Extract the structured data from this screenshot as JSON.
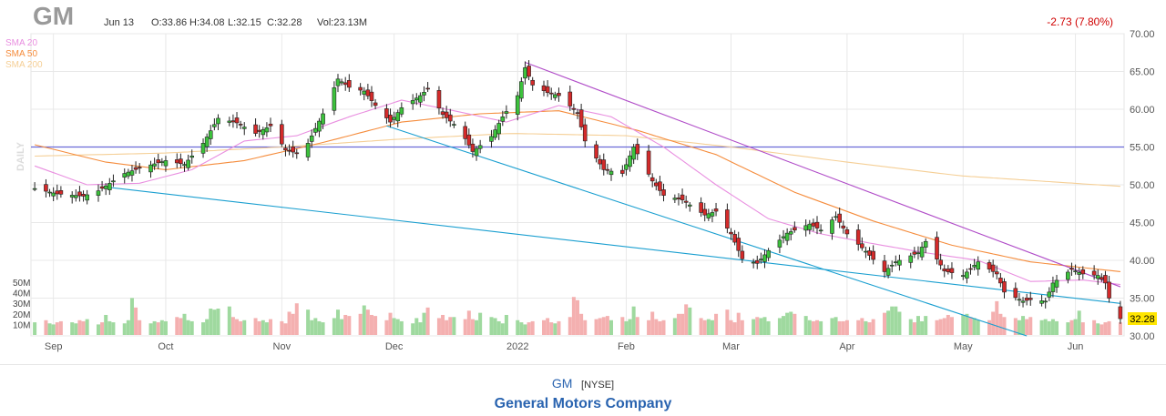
{
  "header": {
    "symbol": "GM",
    "date": "Jun 13",
    "open": "O:33.86",
    "high": "H:34.08",
    "low": "L:32.15",
    "close": "C:32.28",
    "volume": "Vol:23.13M",
    "change": "-2.73 (7.80%)",
    "interval": "DAILY"
  },
  "legend": [
    {
      "name": "SMA 20",
      "color": "#e98fe0"
    },
    {
      "name": "SMA 50",
      "color": "#f58c3c"
    },
    {
      "name": "SMA 200",
      "color": "#f5cf96"
    }
  ],
  "footer": {
    "symbol": "GM",
    "exchange": "[NYSE]",
    "company": "General Motors Company"
  },
  "colors": {
    "up": "#3cc23c",
    "down": "#d42a2a",
    "volume_up": "#9fd99f",
    "volume_down": "#f4b0b0",
    "trendline_upper": "#b04cc8",
    "trendline_lower": "#1a9fd0",
    "horizontal": "#6a6ad8",
    "last_price_bg": "#ffe600"
  },
  "chart_data": {
    "type": "candlestick",
    "y_ticks": [
      "30.00",
      "35.00",
      "40.00",
      "45.00",
      "50.00",
      "55.00",
      "60.00",
      "65.00",
      "70.00"
    ],
    "ylim": [
      30,
      70
    ],
    "volume_ticks": [
      "10M",
      "20M",
      "30M",
      "40M",
      "50M"
    ],
    "x_ticks": [
      "Sep",
      "Oct",
      "Nov",
      "Dec",
      "2022",
      "Feb",
      "Mar",
      "Apr",
      "May",
      "Jun"
    ],
    "last_price": "32.28",
    "horizontal_line": 55,
    "trendlines": [
      {
        "name": "upper",
        "from": [
          "2022-01-05",
          66.2
        ],
        "to": [
          "2022-06-13",
          36.5
        ]
      },
      {
        "name": "lower-1",
        "from": [
          "2021-09-15",
          49.7
        ],
        "to": [
          "2022-06-13",
          34.3
        ]
      },
      {
        "name": "lower-2",
        "from": [
          "2021-11-29",
          57.8
        ],
        "to": [
          "2022-05-19",
          30.0
        ]
      }
    ],
    "price_anchors": [
      [
        "2021-08-27",
        49.5
      ],
      [
        "2021-09-02",
        48.8
      ],
      [
        "2021-09-09",
        48.5
      ],
      [
        "2021-09-13",
        49.2
      ],
      [
        "2021-09-20",
        51.5
      ],
      [
        "2021-09-24",
        52.2
      ],
      [
        "2021-10-01",
        53.2
      ],
      [
        "2021-10-06",
        52.7
      ],
      [
        "2021-10-11",
        55.5
      ],
      [
        "2021-10-15",
        58.8
      ],
      [
        "2021-10-20",
        58.2
      ],
      [
        "2021-10-25",
        56.8
      ],
      [
        "2021-10-29",
        57.8
      ],
      [
        "2021-11-02",
        54.6
      ],
      [
        "2021-11-05",
        54.2
      ],
      [
        "2021-11-08",
        55.5
      ],
      [
        "2021-11-12",
        59.4
      ],
      [
        "2021-11-16",
        64.0
      ],
      [
        "2021-11-19",
        62.9
      ],
      [
        "2021-11-23",
        62.4
      ],
      [
        "2021-11-26",
        60.5
      ],
      [
        "2021-11-30",
        58.3
      ],
      [
        "2021-12-03",
        60.2
      ],
      [
        "2021-12-08",
        61.8
      ],
      [
        "2021-12-10",
        62.7
      ],
      [
        "2021-12-14",
        59.3
      ],
      [
        "2021-12-17",
        58.0
      ],
      [
        "2021-12-20",
        56.1
      ],
      [
        "2021-12-22",
        54.4
      ],
      [
        "2021-12-27",
        56.4
      ],
      [
        "2021-12-30",
        59.0
      ],
      [
        "2022-01-03",
        61.8
      ],
      [
        "2022-01-05",
        65.5
      ],
      [
        "2022-01-07",
        63.2
      ],
      [
        "2022-01-11",
        62.2
      ],
      [
        "2022-01-14",
        61.8
      ],
      [
        "2022-01-19",
        59.5
      ],
      [
        "2022-01-21",
        55.8
      ],
      [
        "2022-01-26",
        52.0
      ],
      [
        "2022-01-31",
        51.5
      ],
      [
        "2022-02-03",
        55.0
      ],
      [
        "2022-02-08",
        50.5
      ],
      [
        "2022-02-11",
        48.6
      ],
      [
        "2022-02-16",
        48.0
      ],
      [
        "2022-02-22",
        46.0
      ],
      [
        "2022-02-25",
        46.5
      ],
      [
        "2022-03-01",
        43.5
      ],
      [
        "2022-03-04",
        40.2
      ],
      [
        "2022-03-08",
        39.6
      ],
      [
        "2022-03-11",
        41.3
      ],
      [
        "2022-03-16",
        43.6
      ],
      [
        "2022-03-22",
        44.8
      ],
      [
        "2022-03-25",
        44.0
      ],
      [
        "2022-03-29",
        45.8
      ],
      [
        "2022-04-01",
        43.5
      ],
      [
        "2022-04-06",
        41.2
      ],
      [
        "2022-04-11",
        38.5
      ],
      [
        "2022-04-14",
        39.8
      ],
      [
        "2022-04-20",
        41.0
      ],
      [
        "2022-04-22",
        42.5
      ],
      [
        "2022-04-27",
        38.6
      ],
      [
        "2022-05-02",
        38.0
      ],
      [
        "2022-05-06",
        39.8
      ],
      [
        "2022-05-11",
        38.2
      ],
      [
        "2022-05-13",
        35.8
      ],
      [
        "2022-05-18",
        34.6
      ],
      [
        "2022-05-20",
        34.8
      ],
      [
        "2022-05-24",
        34.6
      ],
      [
        "2022-05-26",
        37.0
      ],
      [
        "2022-05-31",
        38.8
      ],
      [
        "2022-06-03",
        38.2
      ],
      [
        "2022-06-07",
        38.0
      ],
      [
        "2022-06-09",
        37.0
      ],
      [
        "2022-06-10",
        35.0
      ],
      [
        "2022-06-13",
        32.28
      ]
    ],
    "sma20_anchors": [
      [
        "2021-08-27",
        52.5
      ],
      [
        "2021-09-10",
        50.0
      ],
      [
        "2021-09-24",
        50.2
      ],
      [
        "2021-10-08",
        52.0
      ],
      [
        "2021-10-22",
        55.8
      ],
      [
        "2021-11-05",
        56.5
      ],
      [
        "2021-11-19",
        59.0
      ],
      [
        "2021-12-03",
        61.2
      ],
      [
        "2021-12-17",
        59.8
      ],
      [
        "2021-12-31",
        58.3
      ],
      [
        "2022-01-14",
        60.5
      ],
      [
        "2022-01-28",
        59.0
      ],
      [
        "2022-02-11",
        55.0
      ],
      [
        "2022-02-25",
        50.0
      ],
      [
        "2022-03-11",
        45.5
      ],
      [
        "2022-03-25",
        43.5
      ],
      [
        "2022-04-08",
        42.2
      ],
      [
        "2022-04-22",
        41.0
      ],
      [
        "2022-05-06",
        40.0
      ],
      [
        "2022-05-20",
        37.2
      ],
      [
        "2022-06-03",
        37.4
      ],
      [
        "2022-06-13",
        36.8
      ]
    ],
    "sma50_anchors": [
      [
        "2021-08-27",
        55.3
      ],
      [
        "2021-09-15",
        53.0
      ],
      [
        "2021-10-01",
        52.0
      ],
      [
        "2021-10-22",
        53.2
      ],
      [
        "2021-11-12",
        55.6
      ],
      [
        "2021-12-03",
        58.3
      ],
      [
        "2021-12-24",
        59.4
      ],
      [
        "2022-01-14",
        59.8
      ],
      [
        "2022-02-04",
        57.2
      ],
      [
        "2022-02-25",
        54.0
      ],
      [
        "2022-03-18",
        49.0
      ],
      [
        "2022-04-08",
        45.2
      ],
      [
        "2022-04-29",
        42.0
      ],
      [
        "2022-05-20",
        39.8
      ],
      [
        "2022-06-13",
        38.5
      ]
    ],
    "sma200_anchors": [
      [
        "2021-08-27",
        53.8
      ],
      [
        "2021-10-01",
        54.2
      ],
      [
        "2021-11-01",
        55.0
      ],
      [
        "2021-12-01",
        56.0
      ],
      [
        "2022-01-01",
        56.8
      ],
      [
        "2022-02-01",
        56.5
      ],
      [
        "2022-03-01",
        55.0
      ],
      [
        "2022-04-01",
        53.0
      ],
      [
        "2022-05-01",
        51.2
      ],
      [
        "2022-06-13",
        49.8
      ]
    ],
    "volume_millions": [
      12,
      14,
      11,
      10,
      12,
      13,
      12,
      11,
      14,
      13,
      15,
      10,
      12,
      19,
      13,
      12,
      11,
      14,
      35,
      26,
      14,
      11,
      13,
      12,
      14,
      13,
      17,
      16,
      20,
      14,
      13,
      12,
      15,
      25,
      24,
      25,
      27,
      17,
      15,
      13,
      14,
      16,
      13,
      14,
      12,
      15,
      13,
      11,
      22,
      20,
      30,
      24,
      14,
      16,
      13,
      12,
      16,
      24,
      15,
      19,
      18,
      20,
      28,
      24,
      19,
      18,
      14,
      21,
      16,
      15,
      13,
      11,
      16,
      12,
      21,
      26,
      16,
      19,
      14,
      17,
      17,
      15,
      23,
      15,
      14,
      21,
      17,
      16,
      13,
      11,
      19,
      14,
      12,
      10,
      12,
      13,
      14,
      16,
      12,
      11,
      13,
      17,
      36,
      33,
      20,
      14,
      15,
      16,
      17,
      18,
      14,
      17,
      13,
      15,
      27,
      17,
      14,
      22,
      15,
      13,
      14,
      16,
      20,
      20,
      29,
      26,
      16,
      14,
      15,
      14,
      20,
      24,
      14,
      12,
      21,
      14,
      15,
      17,
      16,
      17,
      13,
      16,
      18,
      21,
      22,
      20,
      18,
      14,
      13,
      14,
      13,
      16,
      17,
      13,
      13,
      14,
      14,
      16,
      13,
      12,
      15,
      21,
      23,
      27,
      27,
      22,
      15,
      12,
      18,
      13,
      18,
      14,
      15,
      16,
      19,
      17,
      19,
      20,
      17,
      16,
      14,
      14,
      22,
      32,
      20,
      17,
      16,
      14,
      18,
      15,
      17,
      14,
      15,
      13,
      15,
      13,
      12,
      14,
      15,
      23
    ]
  }
}
